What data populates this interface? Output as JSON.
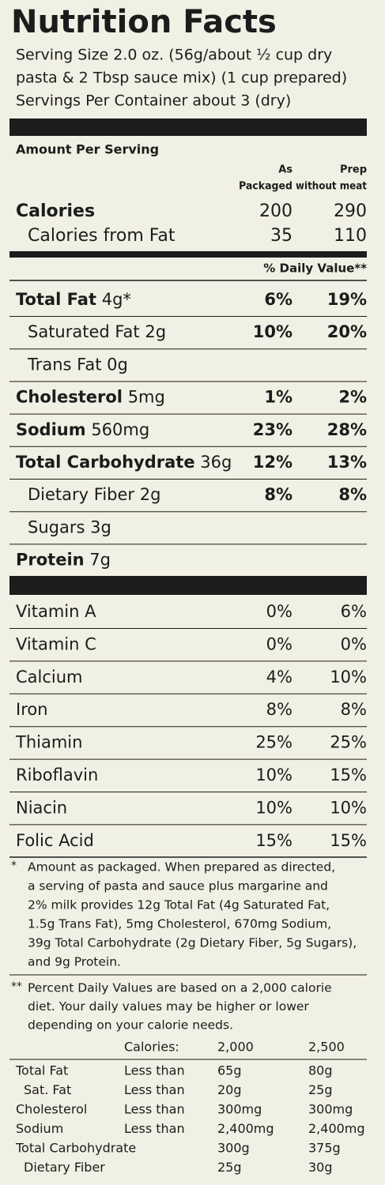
{
  "title": "Nutrition Facts",
  "serving_lines": [
    "Serving Size 2.0 oz. (56g/about ½ cup dry",
    "pasta & 2 Tbsp sauce mix) (1 cup prepared)",
    "Servings Per Container about 3 (dry)"
  ],
  "amount_per_serving": "Amount Per Serving",
  "columns": [
    [
      "As",
      "Packaged"
    ],
    [
      "Prep",
      "without meat"
    ]
  ],
  "calories": {
    "label": "Calories",
    "values": [
      200,
      290
    ]
  },
  "calories_from_fat": {
    "label": "Calories from Fat",
    "values": [
      35,
      110
    ]
  },
  "daily_value_header": "% Daily Value**",
  "nutrients": [
    {
      "name": "Total Fat",
      "amount": "4g*",
      "dv": [
        "6%",
        "19%"
      ]
    },
    {
      "name": "Saturated Fat",
      "amount": "2g",
      "dv": [
        "10%",
        "20%"
      ],
      "sub": true
    },
    {
      "name": "Trans Fat",
      "amount": "0g",
      "sub": true
    },
    {
      "name": "Cholesterol",
      "amount": "5mg",
      "dv": [
        "1%",
        "2%"
      ]
    },
    {
      "name": "Sodium",
      "amount": "560mg",
      "dv": [
        "23%",
        "28%"
      ]
    },
    {
      "name": "Total Carbohydrate",
      "amount": "36g",
      "dv": [
        "12%",
        "13%"
      ]
    },
    {
      "name": "Dietary Fiber",
      "amount": "2g",
      "dv": [
        "8%",
        "8%"
      ],
      "sub": true
    },
    {
      "name": "Sugars",
      "amount": "3g",
      "sub": true
    },
    {
      "name": "Protein",
      "amount": "7g"
    }
  ],
  "vitamins": [
    {
      "name": "Vitamin A",
      "dv": [
        "0%",
        "6%"
      ]
    },
    {
      "name": "Vitamin C",
      "dv": [
        "0%",
        "0%"
      ]
    },
    {
      "name": "Calcium",
      "dv": [
        "4%",
        "10%"
      ]
    },
    {
      "name": "Iron",
      "dv": [
        "8%",
        "8%"
      ]
    },
    {
      "name": "Thiamin",
      "dv": [
        "25%",
        "25%"
      ]
    },
    {
      "name": "Riboflavin",
      "dv": [
        "10%",
        "15%"
      ]
    },
    {
      "name": "Niacin",
      "dv": [
        "10%",
        "10%"
      ]
    },
    {
      "name": "Folic Acid",
      "dv": [
        "15%",
        "15%"
      ]
    }
  ],
  "footnote_amount": {
    "mark": "*",
    "lines": [
      "Amount as packaged. When prepared as directed,",
      "a serving of pasta and sauce plus margarine and",
      "2% milk provides 12g Total Fat (4g Saturated Fat,",
      "1.5g Trans Fat), 5mg Cholesterol, 670mg Sodium,",
      "39g Total Carbohydrate (2g Dietary Fiber, 5g Sugars),",
      "and 9g Protein."
    ]
  },
  "footnote_dv": {
    "mark": "**",
    "lines": [
      "Percent Daily Values are based on a 2,000 calorie",
      "diet. Your daily values may be higher or lower",
      "depending on your calorie needs."
    ]
  },
  "reference": {
    "calories_label": "Calories:",
    "levels": [
      "2,000",
      "2,500"
    ],
    "rows": [
      {
        "nutrient": "Total Fat",
        "limit": "Less than",
        "values": [
          "65g",
          "80g"
        ]
      },
      {
        "nutrient": "Sat. Fat",
        "limit": "Less than",
        "values": [
          "20g",
          "25g"
        ],
        "sub": true
      },
      {
        "nutrient": "Cholesterol",
        "limit": "Less than",
        "values": [
          "300mg",
          "300mg"
        ]
      },
      {
        "nutrient": "Sodium",
        "limit": "Less than",
        "values": [
          "2,400mg",
          "2,400mg"
        ]
      },
      {
        "nutrient": "Total Carbohydrate",
        "values": [
          "300g",
          "375g"
        ]
      },
      {
        "nutrient": "Dietary Fiber",
        "values": [
          "25g",
          "30g"
        ],
        "sub": true
      }
    ]
  }
}
